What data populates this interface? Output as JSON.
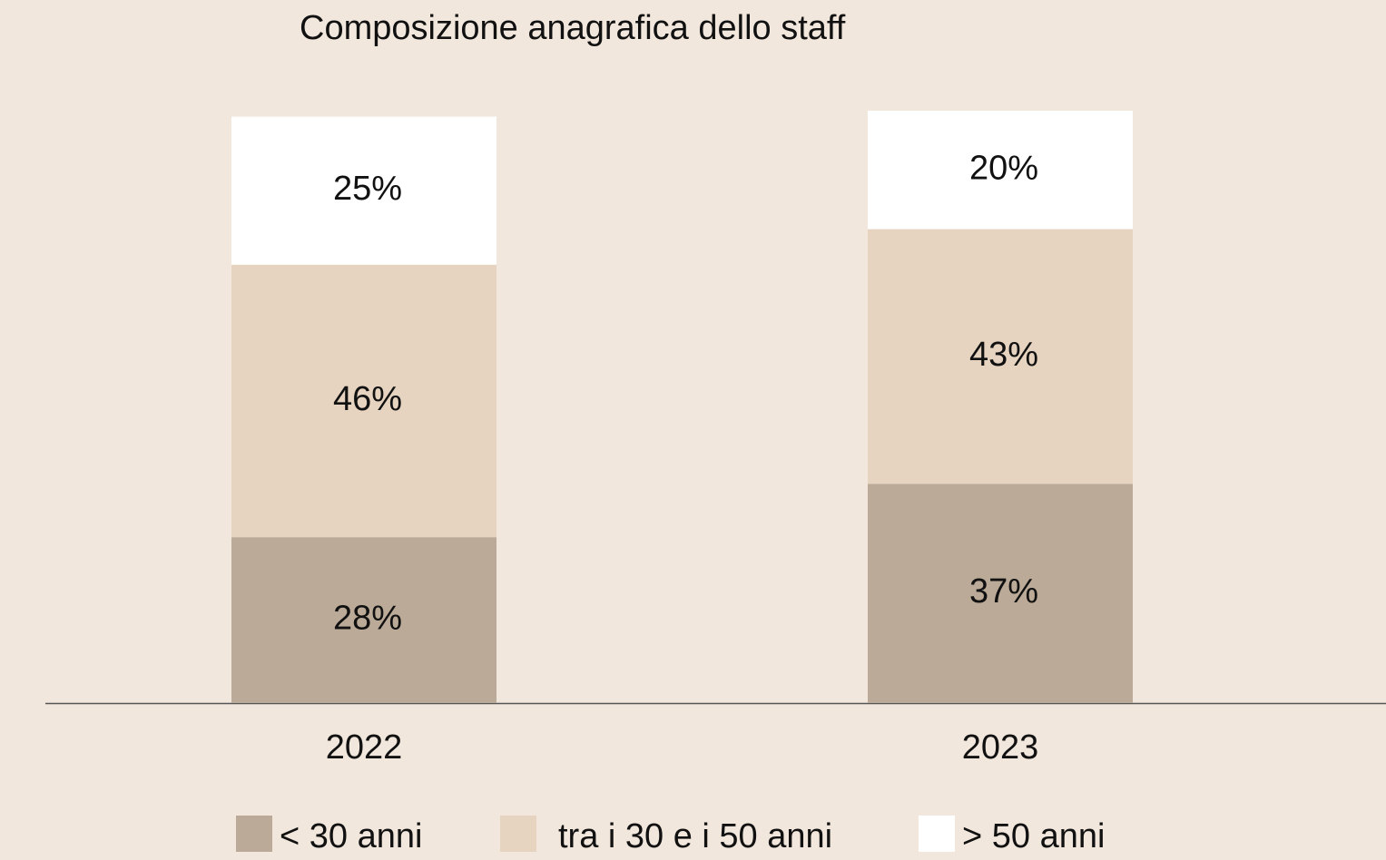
{
  "chart_data": {
    "type": "stacked_bar",
    "title": "Composizione anagrafica dello staff",
    "categories": [
      "2022",
      "2023"
    ],
    "series": [
      {
        "name": "< 30 anni",
        "color": "#bcaa98",
        "values": [
          28,
          37
        ],
        "value_labels": [
          "28%",
          "37%"
        ]
      },
      {
        "name": "tra i 30 e i 50 anni",
        "color": "#e6d3c0",
        "values": [
          46,
          43
        ],
        "value_labels": [
          "46%",
          "43%"
        ]
      },
      {
        "name": "> 50 anni",
        "color": "#ffffff",
        "values": [
          25,
          20
        ],
        "value_labels": [
          "25%",
          "20%"
        ]
      }
    ]
  }
}
